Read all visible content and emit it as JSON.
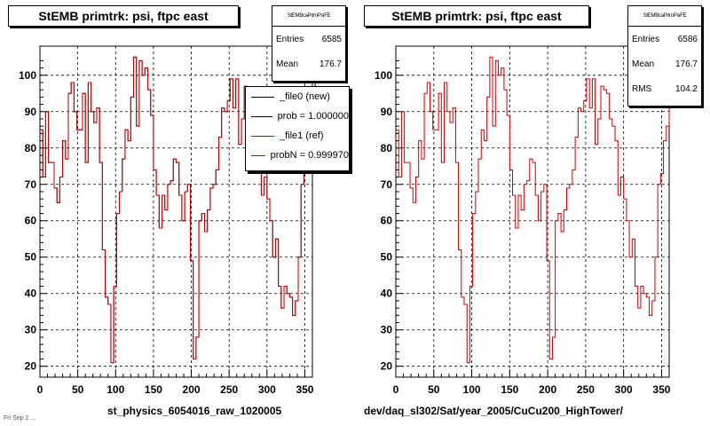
{
  "colors": {
    "ref": "#cc0000",
    "new": "#000000",
    "background": "#ffffff"
  },
  "footer_text": "Fri Sep 2 ...",
  "panels": [
    {
      "title": "StEMB primtrk: psi, ftpc east",
      "stats": {
        "name": "StEMBcaPrimPsiFE",
        "rows": [
          {
            "label": "Entries",
            "value": "6585"
          },
          {
            "label": "Mean",
            "value": "176.7"
          }
        ]
      },
      "legend": [
        {
          "label": "_file0 (new)",
          "color": "#000000"
        },
        {
          "label": "prob = 1.000000",
          "color": "#000000"
        },
        {
          "label": "_file1 (ref)",
          "color": "#cc0000"
        },
        {
          "label": "probN = 0.999970",
          "color": "#cc0000"
        }
      ],
      "xfile": "st_physics_6054016_raw_1020005"
    },
    {
      "title": "StEMB primtrk: psi, ftpc east",
      "stats": {
        "name": "StEMBcaPrimPsiFE",
        "rows": [
          {
            "label": "Entries",
            "value": "6586"
          },
          {
            "label": "Mean",
            "value": "176.7"
          },
          {
            "label": "RMS",
            "value": "104.2"
          }
        ]
      },
      "xfile": "dev/daq_sl302/Sat/year_2005/CuCu200_HighTower/"
    }
  ],
  "chart_data": [
    {
      "type": "line",
      "step": true,
      "title": "StEMB primtrk: psi, ftpc east",
      "xlim": [
        0,
        360
      ],
      "ylim": [
        17,
        108
      ],
      "xticks": [
        0,
        50,
        100,
        150,
        200,
        250,
        300,
        350
      ],
      "yticks": [
        20,
        30,
        40,
        50,
        60,
        70,
        80,
        90,
        100
      ],
      "grid": true,
      "legend_position": "top-right",
      "bin_width": 3.75,
      "series": [
        {
          "name": "_file1 (ref)",
          "color": "#cc0000",
          "values": [
            85,
            72,
            90,
            76,
            76,
            69,
            65,
            72,
            82,
            77,
            95,
            98,
            90,
            85,
            85,
            95,
            76,
            98,
            90,
            87,
            91,
            76,
            52,
            39,
            37,
            21,
            42,
            62,
            68,
            77,
            85,
            82,
            94,
            105,
            86,
            104,
            100,
            102,
            96,
            89,
            74,
            67,
            58,
            67,
            63,
            70,
            71,
            77,
            76,
            67,
            60,
            68,
            70,
            49,
            22,
            28,
            60,
            62,
            57,
            63,
            69,
            70,
            74,
            83,
            91,
            90,
            93,
            99,
            91,
            99,
            81,
            88,
            97,
            96,
            95,
            88,
            86,
            82,
            67,
            72,
            66,
            60,
            50,
            55,
            42,
            36,
            42,
            40,
            39,
            34,
            38,
            50,
            70,
            73,
            82,
            86,
            95,
            101
          ]
        },
        {
          "name": "_file0 (new)",
          "color": "#000000",
          "values": [
            85,
            72,
            90,
            76,
            76,
            69,
            65,
            72,
            82,
            77,
            95,
            98,
            90,
            85,
            85,
            95,
            76,
            98,
            90,
            87,
            91,
            76,
            52,
            39,
            37,
            21,
            42,
            62,
            68,
            77,
            85,
            82,
            94,
            105,
            86,
            104,
            100,
            102,
            96,
            89,
            74,
            67,
            58,
            67,
            63,
            70,
            71,
            77,
            76,
            67,
            60,
            68,
            70,
            49,
            22,
            28,
            60,
            62,
            57,
            63,
            69,
            70,
            74,
            83,
            91,
            90,
            93,
            99,
            91,
            99,
            81,
            88,
            97,
            96,
            95,
            88,
            86,
            82,
            67,
            72,
            66,
            60,
            50,
            55,
            42,
            36,
            42,
            40,
            39,
            34,
            38,
            50,
            70,
            73,
            82,
            86,
            95,
            101
          ]
        }
      ]
    },
    {
      "type": "line",
      "step": true,
      "title": "StEMB primtrk: psi, ftpc east",
      "xlim": [
        0,
        360
      ],
      "ylim": [
        17,
        108
      ],
      "xticks": [
        0,
        50,
        100,
        150,
        200,
        250,
        300,
        350
      ],
      "yticks": [
        20,
        30,
        40,
        50,
        60,
        70,
        80,
        90,
        100
      ],
      "grid": true,
      "bin_width": 3.75,
      "series": [
        {
          "color": "#cc0000",
          "values": [
            85,
            72,
            90,
            76,
            76,
            69,
            65,
            72,
            82,
            77,
            95,
            98,
            90,
            85,
            85,
            95,
            76,
            98,
            90,
            87,
            91,
            76,
            52,
            39,
            37,
            21,
            42,
            62,
            68,
            77,
            85,
            82,
            94,
            105,
            86,
            104,
            100,
            102,
            96,
            89,
            74,
            67,
            58,
            67,
            63,
            70,
            71,
            77,
            76,
            67,
            60,
            68,
            70,
            49,
            22,
            28,
            60,
            62,
            57,
            63,
            69,
            70,
            74,
            83,
            91,
            90,
            93,
            99,
            91,
            99,
            81,
            88,
            97,
            96,
            95,
            88,
            86,
            82,
            67,
            72,
            66,
            60,
            50,
            55,
            42,
            36,
            42,
            40,
            39,
            34,
            38,
            50,
            70,
            73,
            82,
            86,
            95,
            101
          ]
        }
      ]
    }
  ]
}
